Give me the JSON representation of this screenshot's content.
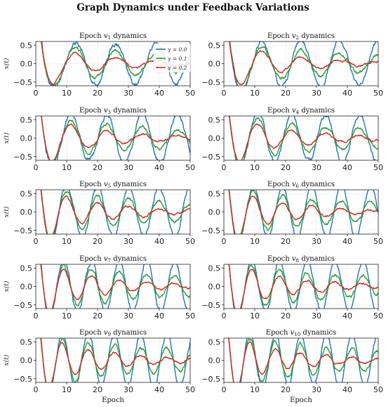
{
  "figure": {
    "title": "Graph Dynamics under Feedback Variations"
  },
  "chart_data": {
    "type": "line",
    "layout": "5x2 grid",
    "shared_xlabel": "Epoch",
    "ylabel": "x(t)",
    "xlim": [
      0,
      50
    ],
    "ylim": [
      -0.6,
      0.6
    ],
    "xticks": [
      0,
      10,
      20,
      30,
      40,
      50
    ],
    "yticks": [
      -0.5,
      0.0,
      0.5
    ],
    "grid": true,
    "legend": {
      "panel": 1,
      "placement": "top-right",
      "entries": [
        "γ = 0.0",
        "γ = 0.1",
        "γ = 0.2"
      ]
    },
    "series_colors": {
      "γ = 0.0": "#1f77b4",
      "γ = 0.1": "#2ca02c",
      "γ = 0.2": "#d62728"
    },
    "panels": [
      {
        "title": "Epoch v1 dynamics",
        "subscript": "1",
        "series": [
          {
            "name": "γ = 0.0",
            "amplitude": 0.55,
            "decay": 0.0,
            "period": 13,
            "noise": 0.07
          },
          {
            "name": "γ = 0.1",
            "amplitude": 0.55,
            "decay": 0.02,
            "period": 13,
            "noise": 0.05
          },
          {
            "name": "γ = 0.2",
            "amplitude": 0.55,
            "decay": 0.05,
            "period": 13,
            "noise": 0.03
          }
        ]
      },
      {
        "title": "Epoch v2 dynamics",
        "subscript": "2",
        "series": [
          {
            "name": "γ = 0.0",
            "amplitude": 0.62,
            "decay": 0.0,
            "period": 12.5,
            "noise": 0.07
          },
          {
            "name": "γ = 0.1",
            "amplitude": 0.6,
            "decay": 0.02,
            "period": 12.5,
            "noise": 0.05
          },
          {
            "name": "γ = 0.2",
            "amplitude": 0.6,
            "decay": 0.05,
            "period": 12.5,
            "noise": 0.03
          }
        ]
      },
      {
        "title": "Epoch v3 dynamics",
        "subscript": "3",
        "series": [
          {
            "name": "γ = 0.0",
            "amplitude": 0.65,
            "decay": 0.0,
            "period": 11.5,
            "noise": 0.07
          },
          {
            "name": "γ = 0.1",
            "amplitude": 0.62,
            "decay": 0.02,
            "period": 11.5,
            "noise": 0.05
          },
          {
            "name": "γ = 0.2",
            "amplitude": 0.62,
            "decay": 0.05,
            "period": 11.5,
            "noise": 0.03
          }
        ]
      },
      {
        "title": "Epoch v4 dynamics",
        "subscript": "4",
        "series": [
          {
            "name": "γ = 0.0",
            "amplitude": 0.65,
            "decay": 0.0,
            "period": 11,
            "noise": 0.07
          },
          {
            "name": "γ = 0.1",
            "amplitude": 0.62,
            "decay": 0.02,
            "period": 11,
            "noise": 0.05
          },
          {
            "name": "γ = 0.2",
            "amplitude": 0.62,
            "decay": 0.05,
            "period": 11,
            "noise": 0.03
          }
        ]
      },
      {
        "title": "Epoch v5 dynamics",
        "subscript": "5",
        "series": [
          {
            "name": "γ = 0.0",
            "amplitude": 0.68,
            "decay": 0.0,
            "period": 10,
            "noise": 0.07
          },
          {
            "name": "γ = 0.1",
            "amplitude": 0.65,
            "decay": 0.02,
            "period": 10,
            "noise": 0.05
          },
          {
            "name": "γ = 0.2",
            "amplitude": 0.65,
            "decay": 0.05,
            "period": 10,
            "noise": 0.03
          }
        ]
      },
      {
        "title": "Epoch v6 dynamics",
        "subscript": "6",
        "series": [
          {
            "name": "γ = 0.0",
            "amplitude": 0.68,
            "decay": 0.0,
            "period": 9.5,
            "noise": 0.07
          },
          {
            "name": "γ = 0.1",
            "amplitude": 0.65,
            "decay": 0.02,
            "period": 9.5,
            "noise": 0.05
          },
          {
            "name": "γ = 0.2",
            "amplitude": 0.65,
            "decay": 0.05,
            "period": 9.5,
            "noise": 0.03
          }
        ]
      },
      {
        "title": "Epoch v7 dynamics",
        "subscript": "7",
        "series": [
          {
            "name": "γ = 0.0",
            "amplitude": 0.7,
            "decay": 0.0,
            "period": 9,
            "noise": 0.07
          },
          {
            "name": "γ = 0.1",
            "amplitude": 0.68,
            "decay": 0.02,
            "period": 9,
            "noise": 0.05
          },
          {
            "name": "γ = 0.2",
            "amplitude": 0.68,
            "decay": 0.05,
            "period": 9,
            "noise": 0.03
          }
        ]
      },
      {
        "title": "Epoch v8 dynamics",
        "subscript": "8",
        "series": [
          {
            "name": "γ = 0.0",
            "amplitude": 0.7,
            "decay": 0.0,
            "period": 9,
            "noise": 0.07
          },
          {
            "name": "γ = 0.1",
            "amplitude": 0.68,
            "decay": 0.02,
            "period": 9,
            "noise": 0.05
          },
          {
            "name": "γ = 0.2",
            "amplitude": 0.68,
            "decay": 0.05,
            "period": 9,
            "noise": 0.03
          }
        ]
      },
      {
        "title": "Epoch v9 dynamics",
        "subscript": "9",
        "series": [
          {
            "name": "γ = 0.0",
            "amplitude": 0.72,
            "decay": 0.0,
            "period": 8.5,
            "noise": 0.07
          },
          {
            "name": "γ = 0.1",
            "amplitude": 0.7,
            "decay": 0.02,
            "period": 8.5,
            "noise": 0.05
          },
          {
            "name": "γ = 0.2",
            "amplitude": 0.7,
            "decay": 0.05,
            "period": 8.5,
            "noise": 0.03
          }
        ]
      },
      {
        "title": "Epoch v10 dynamics",
        "subscript": "10",
        "series": [
          {
            "name": "γ = 0.0",
            "amplitude": 0.72,
            "decay": 0.0,
            "period": 8.3,
            "noise": 0.07
          },
          {
            "name": "γ = 0.1",
            "amplitude": 0.7,
            "decay": 0.02,
            "period": 8.3,
            "noise": 0.05
          },
          {
            "name": "γ = 0.2",
            "amplitude": 0.7,
            "decay": 0.05,
            "period": 8.3,
            "noise": 0.03
          }
        ]
      }
    ]
  }
}
